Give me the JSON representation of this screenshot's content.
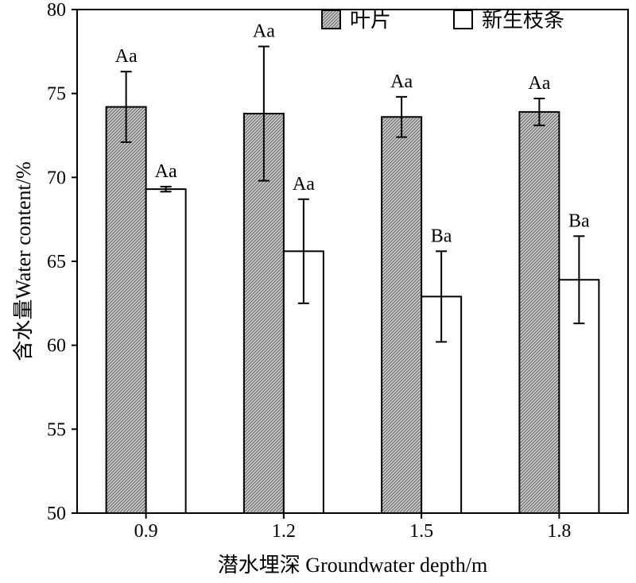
{
  "chart_data": {
    "type": "bar",
    "title": "",
    "xlabel": "潜水埋深 Groundwater depth/m",
    "ylabel": "含水量Water content/%",
    "ylim": [
      50,
      80
    ],
    "yticks": [
      50,
      55,
      60,
      65,
      70,
      75,
      80
    ],
    "categories": [
      "0.9",
      "1.2",
      "1.5",
      "1.8"
    ],
    "legend_position": "top-right",
    "grid": false,
    "series": [
      {
        "name": "叶片",
        "pattern": "hatched",
        "values": [
          74.2,
          73.8,
          73.6,
          73.9
        ],
        "errors": [
          2.1,
          4.0,
          1.2,
          0.8
        ],
        "letters": [
          "Aa",
          "Aa",
          "Aa",
          "Aa"
        ]
      },
      {
        "name": "新生枝条",
        "pattern": "white",
        "values": [
          69.3,
          65.6,
          62.9,
          63.9
        ],
        "errors": [
          0.15,
          3.1,
          2.7,
          2.6
        ],
        "letters": [
          "Aa",
          "Aa",
          "Ba",
          "Ba"
        ]
      }
    ]
  }
}
